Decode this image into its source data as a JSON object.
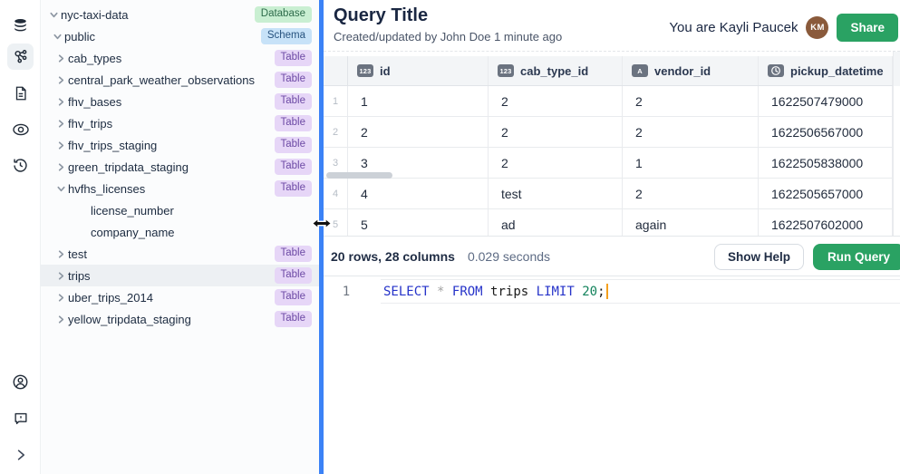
{
  "rail": {
    "icons": [
      {
        "name": "database-icon",
        "active": false
      },
      {
        "name": "schema-graph-icon",
        "active": true
      },
      {
        "name": "document-icon",
        "active": false
      },
      {
        "name": "eye-icon",
        "active": false
      },
      {
        "name": "history-icon",
        "active": false
      },
      {
        "name": "account-icon",
        "active": false
      },
      {
        "name": "feedback-icon",
        "active": false
      },
      {
        "name": "expand-sidebar-icon",
        "active": false
      }
    ]
  },
  "tree": {
    "items": [
      {
        "label": "nyc-taxi-data",
        "badge": "Database",
        "level": 0,
        "state": "expanded",
        "selected": false
      },
      {
        "label": "public",
        "badge": "Schema",
        "level": 1,
        "state": "expanded",
        "selected": false
      },
      {
        "label": "cab_types",
        "badge": "Table",
        "level": 2,
        "state": "collapsed",
        "selected": false
      },
      {
        "label": "central_park_weather_observations",
        "badge": "Table",
        "level": 2,
        "state": "collapsed",
        "selected": false
      },
      {
        "label": "fhv_bases",
        "badge": "Table",
        "level": 2,
        "state": "collapsed",
        "selected": false
      },
      {
        "label": "fhv_trips",
        "badge": "Table",
        "level": 2,
        "state": "collapsed",
        "selected": false
      },
      {
        "label": "fhv_trips_staging",
        "badge": "Table",
        "level": 2,
        "state": "collapsed",
        "selected": false
      },
      {
        "label": "green_tripdata_staging",
        "badge": "Table",
        "level": 2,
        "state": "collapsed",
        "selected": false
      },
      {
        "label": "hvfhs_licenses",
        "badge": "Table",
        "level": 2,
        "state": "expanded",
        "selected": false
      },
      {
        "label": "license_number",
        "badge": null,
        "level": 3,
        "state": "leaf",
        "selected": false
      },
      {
        "label": "company_name",
        "badge": null,
        "level": 3,
        "state": "leaf",
        "selected": false
      },
      {
        "label": "test",
        "badge": "Table",
        "level": 2,
        "state": "collapsed",
        "selected": false
      },
      {
        "label": "trips",
        "badge": "Table",
        "level": 2,
        "state": "collapsed",
        "selected": true
      },
      {
        "label": "uber_trips_2014",
        "badge": "Table",
        "level": 2,
        "state": "collapsed",
        "selected": false
      },
      {
        "label": "yellow_tripdata_staging",
        "badge": "Table",
        "level": 2,
        "state": "collapsed",
        "selected": false
      }
    ]
  },
  "header": {
    "title": "Query Title",
    "subtitle": "Created/updated by John Doe 1 minute ago",
    "user_label": "You are Kayli Paucek",
    "avatar_initials": "KM",
    "share_label": "Share"
  },
  "grid": {
    "columns": [
      {
        "name": "id",
        "type": "number",
        "type_icon": "numeric-type-icon"
      },
      {
        "name": "cab_type_id",
        "type": "number",
        "type_icon": "numeric-type-icon"
      },
      {
        "name": "vendor_id",
        "type": "text",
        "type_icon": "text-type-icon"
      },
      {
        "name": "pickup_datetime",
        "type": "datetime",
        "type_icon": "clock-type-icon"
      }
    ],
    "rows": [
      {
        "num": "1",
        "cells": [
          "1",
          "2",
          "2",
          "1622507479000"
        ]
      },
      {
        "num": "2",
        "cells": [
          "2",
          "2",
          "2",
          "1622506567000"
        ]
      },
      {
        "num": "3",
        "cells": [
          "3",
          "2",
          "1",
          "1622505838000"
        ]
      },
      {
        "num": "4",
        "cells": [
          "4",
          "test",
          "2",
          "1622505657000"
        ]
      },
      {
        "num": "5",
        "cells": [
          "5",
          "ad",
          "again",
          "1622507602000"
        ]
      }
    ]
  },
  "statusbar": {
    "rows_info": "20 rows, 28 columns",
    "time_info": "0.029 seconds",
    "show_help_label": "Show Help",
    "run_query_label": "Run Query"
  },
  "editor": {
    "line_number": "1",
    "sql_text": "SELECT * FROM trips LIMIT 20;",
    "tokens": [
      {
        "text": "SELECT",
        "type": "keyword"
      },
      {
        "text": " ",
        "type": "plain"
      },
      {
        "text": "*",
        "type": "operator"
      },
      {
        "text": " ",
        "type": "plain"
      },
      {
        "text": "FROM",
        "type": "keyword"
      },
      {
        "text": " ",
        "type": "plain"
      },
      {
        "text": "trips",
        "type": "plain"
      },
      {
        "text": " ",
        "type": "plain"
      },
      {
        "text": "LIMIT",
        "type": "keyword"
      },
      {
        "text": " ",
        "type": "plain"
      },
      {
        "text": "20",
        "type": "number"
      },
      {
        "text": ";",
        "type": "plain"
      }
    ]
  },
  "colors": {
    "divider_blue": "#3b82f6",
    "action_green": "#2aa263",
    "avatar_brown": "#8a5a3b",
    "badge_database_bg": "#c9efd2",
    "badge_schema_bg": "#c7e2f8",
    "badge_table_bg": "#e6d6f7",
    "keyword_blue": "#2633c9",
    "number_green": "#13835c",
    "caret_orange": "#f5a01d"
  }
}
